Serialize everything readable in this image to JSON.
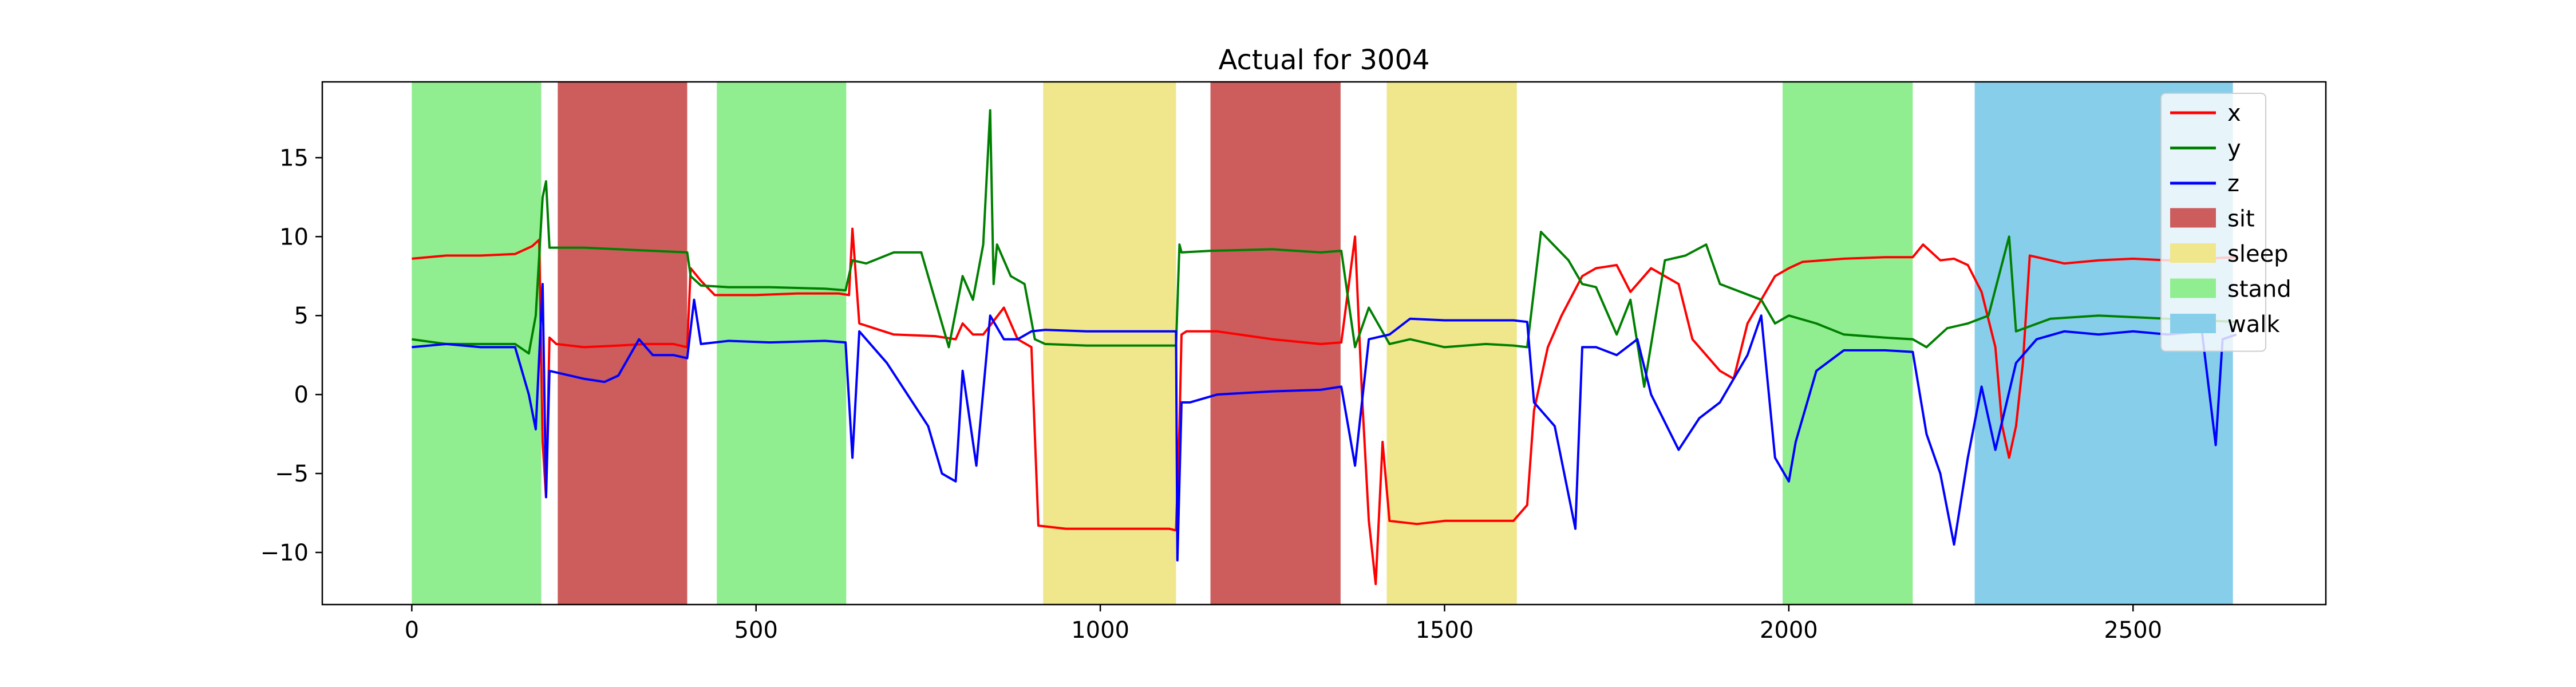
{
  "chart_data": {
    "type": "line",
    "title": "Actual for 3004",
    "xlabel": "",
    "ylabel": "",
    "xlim": [
      -130,
      2780
    ],
    "ylim": [
      -13.3,
      19.8
    ],
    "xticks": [
      0,
      500,
      1000,
      1500,
      2000,
      2500
    ],
    "yticks": [
      -10,
      -5,
      0,
      5,
      10,
      15
    ],
    "grid": false,
    "legend_position": "top-right",
    "series": [
      {
        "name": "x",
        "color": "#ff0000",
        "points": [
          [
            0,
            8.6
          ],
          [
            50,
            8.8
          ],
          [
            100,
            8.8
          ],
          [
            150,
            8.9
          ],
          [
            175,
            9.4
          ],
          [
            185,
            9.8
          ],
          [
            190,
            -3
          ],
          [
            195,
            -6.5
          ],
          [
            200,
            3.6
          ],
          [
            210,
            3.2
          ],
          [
            250,
            3.0
          ],
          [
            300,
            3.1
          ],
          [
            340,
            3.2
          ],
          [
            380,
            3.2
          ],
          [
            400,
            3.0
          ],
          [
            405,
            8.0
          ],
          [
            420,
            7.2
          ],
          [
            440,
            6.3
          ],
          [
            500,
            6.3
          ],
          [
            560,
            6.4
          ],
          [
            620,
            6.4
          ],
          [
            635,
            6.3
          ],
          [
            640,
            10.5
          ],
          [
            650,
            4.5
          ],
          [
            700,
            3.8
          ],
          [
            760,
            3.7
          ],
          [
            790,
            3.5
          ],
          [
            800,
            4.5
          ],
          [
            815,
            3.8
          ],
          [
            830,
            3.8
          ],
          [
            860,
            5.5
          ],
          [
            880,
            3.5
          ],
          [
            900,
            3.0
          ],
          [
            910,
            -8.3
          ],
          [
            950,
            -8.5
          ],
          [
            1000,
            -8.5
          ],
          [
            1050,
            -8.5
          ],
          [
            1100,
            -8.5
          ],
          [
            1110,
            -8.6
          ],
          [
            1115,
            -2.0
          ],
          [
            1118,
            3.8
          ],
          [
            1125,
            4.0
          ],
          [
            1170,
            4.0
          ],
          [
            1250,
            3.5
          ],
          [
            1320,
            3.2
          ],
          [
            1350,
            3.3
          ],
          [
            1370,
            10.0
          ],
          [
            1380,
            0
          ],
          [
            1390,
            -8
          ],
          [
            1400,
            -12
          ],
          [
            1410,
            -3
          ],
          [
            1420,
            -8.0
          ],
          [
            1460,
            -8.2
          ],
          [
            1500,
            -8.0
          ],
          [
            1560,
            -8.0
          ],
          [
            1600,
            -8.0
          ],
          [
            1620,
            -7
          ],
          [
            1630,
            -1
          ],
          [
            1650,
            3
          ],
          [
            1670,
            5
          ],
          [
            1700,
            7.5
          ],
          [
            1720,
            8.0
          ],
          [
            1750,
            8.2
          ],
          [
            1770,
            6.5
          ],
          [
            1800,
            8.0
          ],
          [
            1840,
            7.0
          ],
          [
            1860,
            3.5
          ],
          [
            1880,
            2.5
          ],
          [
            1900,
            1.5
          ],
          [
            1920,
            1.0
          ],
          [
            1940,
            4.5
          ],
          [
            1960,
            6.0
          ],
          [
            1980,
            7.5
          ],
          [
            2000,
            8.0
          ],
          [
            2020,
            8.4
          ],
          [
            2080,
            8.6
          ],
          [
            2140,
            8.7
          ],
          [
            2180,
            8.7
          ],
          [
            2195,
            9.5
          ],
          [
            2220,
            8.5
          ],
          [
            2240,
            8.6
          ],
          [
            2260,
            8.2
          ],
          [
            2280,
            6.5
          ],
          [
            2300,
            3
          ],
          [
            2310,
            -2
          ],
          [
            2320,
            -4
          ],
          [
            2330,
            -2
          ],
          [
            2340,
            2
          ],
          [
            2350,
            8.8
          ],
          [
            2400,
            8.3
          ],
          [
            2450,
            8.5
          ],
          [
            2500,
            8.6
          ],
          [
            2550,
            8.5
          ],
          [
            2600,
            8.6
          ],
          [
            2650,
            8.7
          ]
        ]
      },
      {
        "name": "y",
        "color": "#008000",
        "points": [
          [
            0,
            3.5
          ],
          [
            50,
            3.2
          ],
          [
            100,
            3.2
          ],
          [
            150,
            3.2
          ],
          [
            170,
            2.6
          ],
          [
            180,
            5.0
          ],
          [
            190,
            12.5
          ],
          [
            195,
            13.5
          ],
          [
            200,
            9.3
          ],
          [
            250,
            9.3
          ],
          [
            300,
            9.2
          ],
          [
            350,
            9.1
          ],
          [
            400,
            9.0
          ],
          [
            405,
            7.5
          ],
          [
            420,
            6.9
          ],
          [
            460,
            6.8
          ],
          [
            520,
            6.8
          ],
          [
            600,
            6.7
          ],
          [
            630,
            6.6
          ],
          [
            640,
            8.5
          ],
          [
            660,
            8.3
          ],
          [
            700,
            9.0
          ],
          [
            740,
            9.0
          ],
          [
            760,
            6.0
          ],
          [
            780,
            3
          ],
          [
            800,
            7.5
          ],
          [
            815,
            6.0
          ],
          [
            830,
            9.5
          ],
          [
            840,
            18.0
          ],
          [
            845,
            7
          ],
          [
            850,
            9.5
          ],
          [
            870,
            7.5
          ],
          [
            890,
            7.0
          ],
          [
            905,
            3.5
          ],
          [
            920,
            3.2
          ],
          [
            980,
            3.1
          ],
          [
            1050,
            3.1
          ],
          [
            1110,
            3.1
          ],
          [
            1115,
            9.5
          ],
          [
            1118,
            9.0
          ],
          [
            1160,
            9.1
          ],
          [
            1250,
            9.2
          ],
          [
            1320,
            9.0
          ],
          [
            1350,
            9.1
          ],
          [
            1370,
            3
          ],
          [
            1390,
            5.5
          ],
          [
            1420,
            3.2
          ],
          [
            1450,
            3.5
          ],
          [
            1500,
            3.0
          ],
          [
            1560,
            3.2
          ],
          [
            1600,
            3.1
          ],
          [
            1620,
            3.0
          ],
          [
            1640,
            10.3
          ],
          [
            1680,
            8.5
          ],
          [
            1700,
            7.0
          ],
          [
            1720,
            6.8
          ],
          [
            1750,
            3.8
          ],
          [
            1770,
            6.0
          ],
          [
            1790,
            0.5
          ],
          [
            1820,
            8.5
          ],
          [
            1850,
            8.8
          ],
          [
            1880,
            9.5
          ],
          [
            1900,
            7.0
          ],
          [
            1930,
            6.5
          ],
          [
            1960,
            6.0
          ],
          [
            1980,
            4.5
          ],
          [
            2000,
            5.0
          ],
          [
            2040,
            4.5
          ],
          [
            2080,
            3.8
          ],
          [
            2140,
            3.6
          ],
          [
            2180,
            3.5
          ],
          [
            2200,
            3.0
          ],
          [
            2230,
            4.2
          ],
          [
            2260,
            4.5
          ],
          [
            2290,
            5.0
          ],
          [
            2320,
            10.0
          ],
          [
            2330,
            4.0
          ],
          [
            2380,
            4.8
          ],
          [
            2450,
            5.0
          ],
          [
            2550,
            4.8
          ],
          [
            2650,
            4.6
          ]
        ]
      },
      {
        "name": "z",
        "color": "#0000ff",
        "points": [
          [
            0,
            3.0
          ],
          [
            50,
            3.2
          ],
          [
            100,
            3.0
          ],
          [
            150,
            3.0
          ],
          [
            170,
            0
          ],
          [
            180,
            -2.2
          ],
          [
            190,
            7
          ],
          [
            195,
            -6.5
          ],
          [
            200,
            1.5
          ],
          [
            250,
            1.0
          ],
          [
            280,
            0.8
          ],
          [
            300,
            1.2
          ],
          [
            330,
            3.5
          ],
          [
            350,
            2.5
          ],
          [
            380,
            2.5
          ],
          [
            400,
            2.3
          ],
          [
            410,
            6.0
          ],
          [
            420,
            3.2
          ],
          [
            460,
            3.4
          ],
          [
            520,
            3.3
          ],
          [
            600,
            3.4
          ],
          [
            630,
            3.3
          ],
          [
            640,
            -4
          ],
          [
            650,
            4.0
          ],
          [
            690,
            2.0
          ],
          [
            720,
            0
          ],
          [
            750,
            -2.0
          ],
          [
            770,
            -5.0
          ],
          [
            790,
            -5.5
          ],
          [
            800,
            1.5
          ],
          [
            820,
            -4.5
          ],
          [
            840,
            5.0
          ],
          [
            860,
            3.5
          ],
          [
            880,
            3.5
          ],
          [
            900,
            4.0
          ],
          [
            920,
            4.1
          ],
          [
            980,
            4.0
          ],
          [
            1050,
            4.0
          ],
          [
            1110,
            4.0
          ],
          [
            1112,
            -10.5
          ],
          [
            1118,
            -0.5
          ],
          [
            1130,
            -0.5
          ],
          [
            1170,
            0.0
          ],
          [
            1250,
            0.2
          ],
          [
            1320,
            0.3
          ],
          [
            1350,
            0.5
          ],
          [
            1370,
            -4.5
          ],
          [
            1390,
            3.5
          ],
          [
            1420,
            3.8
          ],
          [
            1450,
            4.8
          ],
          [
            1500,
            4.7
          ],
          [
            1560,
            4.7
          ],
          [
            1600,
            4.7
          ],
          [
            1620,
            4.6
          ],
          [
            1630,
            -0.5
          ],
          [
            1660,
            -2
          ],
          [
            1690,
            -8.5
          ],
          [
            1700,
            3
          ],
          [
            1720,
            3.0
          ],
          [
            1750,
            2.5
          ],
          [
            1780,
            3.5
          ],
          [
            1800,
            0.0
          ],
          [
            1840,
            -3.5
          ],
          [
            1870,
            -1.5
          ],
          [
            1900,
            -0.5
          ],
          [
            1940,
            2.5
          ],
          [
            1960,
            5.0
          ],
          [
            1980,
            -4.0
          ],
          [
            2000,
            -5.5
          ],
          [
            2010,
            -3
          ],
          [
            2040,
            1.5
          ],
          [
            2080,
            2.8
          ],
          [
            2140,
            2.8
          ],
          [
            2180,
            2.7
          ],
          [
            2200,
            -2.5
          ],
          [
            2220,
            -5.0
          ],
          [
            2240,
            -9.5
          ],
          [
            2260,
            -4
          ],
          [
            2280,
            0.5
          ],
          [
            2300,
            -3.5
          ],
          [
            2330,
            2.0
          ],
          [
            2360,
            3.5
          ],
          [
            2400,
            4.0
          ],
          [
            2450,
            3.8
          ],
          [
            2500,
            4.0
          ],
          [
            2550,
            3.8
          ],
          [
            2600,
            4.0
          ],
          [
            2620,
            -3.2
          ],
          [
            2630,
            3.5
          ],
          [
            2650,
            3.8
          ]
        ]
      }
    ],
    "bands": [
      {
        "label": "stand",
        "color": "#90ee90",
        "x": [
          0,
          188
        ]
      },
      {
        "label": "sit",
        "color": "#cd5c5c",
        "x": [
          212,
          400
        ]
      },
      {
        "label": "stand",
        "color": "#90ee90",
        "x": [
          443,
          631
        ]
      },
      {
        "label": "sleep",
        "color": "#f0e68c",
        "x": [
          917,
          1110
        ]
      },
      {
        "label": "sit",
        "color": "#cd5c5c",
        "x": [
          1160,
          1349
        ]
      },
      {
        "label": "sleep",
        "color": "#f0e68c",
        "x": [
          1416,
          1605
        ]
      },
      {
        "label": "stand",
        "color": "#90ee90",
        "x": [
          1991,
          2180
        ]
      },
      {
        "label": "walk",
        "color": "#87ceeb",
        "x": [
          2270,
          2645
        ]
      }
    ],
    "legend": [
      {
        "label": "x",
        "kind": "line",
        "color": "#ff0000"
      },
      {
        "label": "y",
        "kind": "line",
        "color": "#008000"
      },
      {
        "label": "z",
        "kind": "line",
        "color": "#0000ff"
      },
      {
        "label": "sit",
        "kind": "patch",
        "color": "#cd5c5c"
      },
      {
        "label": "sleep",
        "kind": "patch",
        "color": "#f0e68c"
      },
      {
        "label": "stand",
        "kind": "patch",
        "color": "#90ee90"
      },
      {
        "label": "walk",
        "kind": "patch",
        "color": "#87ceeb"
      }
    ]
  }
}
